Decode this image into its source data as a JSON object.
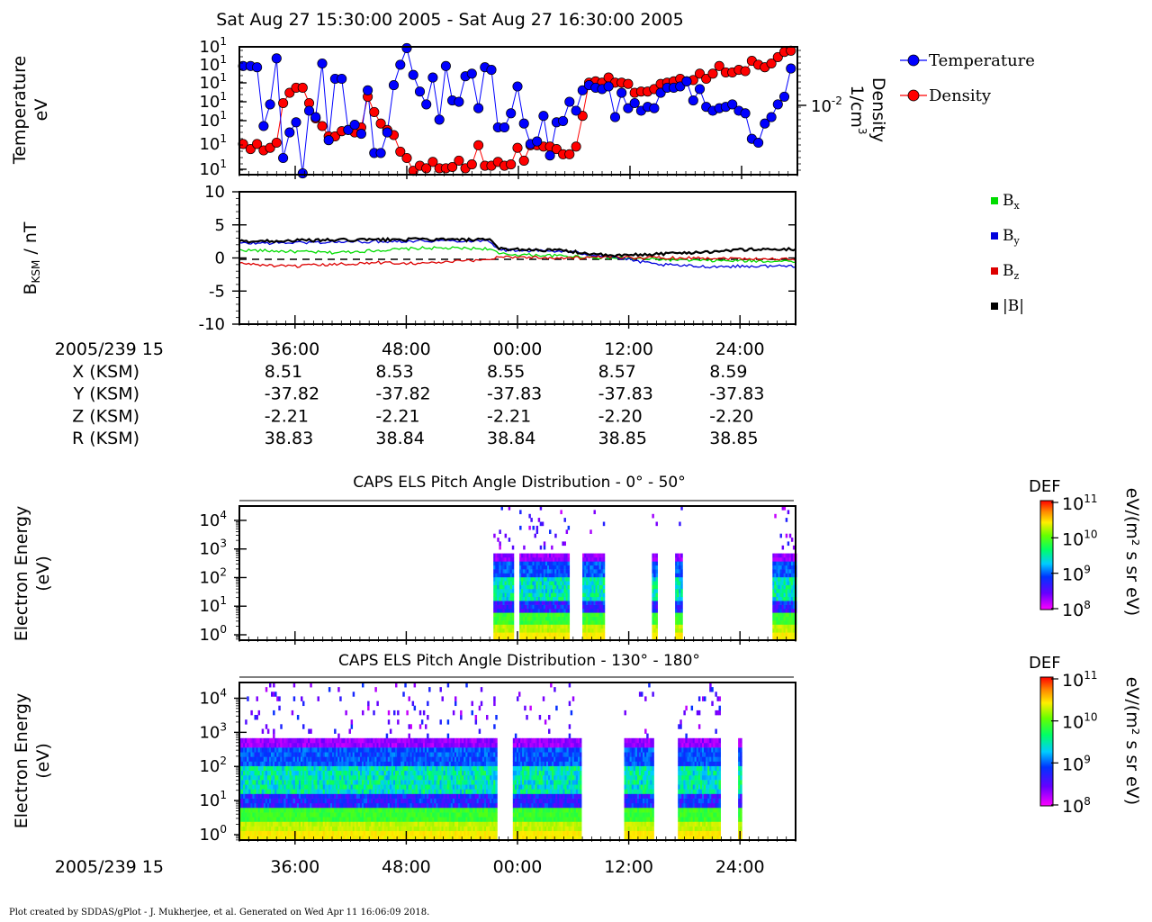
{
  "header": {
    "title": "Sat Aug 27 15:30:00 2005 - Sat Aug 27 16:30:00 2005"
  },
  "footer": {
    "credit": "Plot created by SDDAS/gPlot - J. Mukherjee, et al.  Generated on Wed Apr 11 16:06:09 2018."
  },
  "chart_data": [
    {
      "type": "scatter",
      "panel": "moments",
      "title": "",
      "ylabel": "Temperature",
      "ylabel_unit": "eV",
      "ylabel2": "Density",
      "ylabel2_unit": "1/cm",
      "ylabel2_unit_exp": "3",
      "y_ticks_left": [
        "10",
        "10",
        "10",
        "10",
        "10",
        "10",
        "10"
      ],
      "y_ticks_left_exp": [
        "1",
        "1",
        "1",
        "1",
        "1",
        "1",
        "1"
      ],
      "y_ticks_right": [
        "10"
      ],
      "y_ticks_right_exp": [
        "-2"
      ],
      "xlim_min": [
        0,
        60
      ],
      "ylim_rel": [
        0,
        1
      ],
      "series": [
        {
          "name": "Temperature",
          "color": "#0000ff",
          "x": [
            0.4,
            1.2,
            1.9,
            2.6,
            3.3,
            4.0,
            4.7,
            5.4,
            6.1,
            6.8,
            7.5,
            8.2,
            8.9,
            9.6,
            10.3,
            11.0,
            11.7,
            12.4,
            13.1,
            13.8,
            14.5,
            15.2,
            15.9,
            16.6,
            17.3,
            18.0,
            18.7,
            19.4,
            20.1,
            20.8,
            21.5,
            22.2,
            22.9,
            23.6,
            24.3,
            25.0,
            25.7,
            26.4,
            27.1,
            27.8,
            28.5,
            29.2,
            29.9,
            30.6,
            31.3,
            32.0,
            32.7,
            33.4,
            34.1,
            34.8,
            35.5,
            36.2,
            36.9,
            37.6,
            38.3,
            39.0,
            39.7,
            40.4,
            41.1,
            41.8,
            42.5,
            43.2,
            43.9,
            44.6,
            45.3,
            46.0,
            46.7,
            47.4,
            48.1,
            48.8,
            49.5,
            50.2,
            50.9,
            51.6,
            52.3,
            53.0,
            53.7,
            54.4,
            55.1,
            55.8,
            56.5,
            57.2,
            57.9,
            58.6,
            59.3
          ],
          "y": [
            0.85,
            0.85,
            0.84,
            0.38,
            0.55,
            0.91,
            0.13,
            0.33,
            0.41,
            0.01,
            0.5,
            0.45,
            0.87,
            0.27,
            0.75,
            0.75,
            0.35,
            0.39,
            0.32,
            0.66,
            0.17,
            0.17,
            0.33,
            0.7,
            0.86,
            0.99,
            0.78,
            0.65,
            0.55,
            0.76,
            0.43,
            0.85,
            0.58,
            0.57,
            0.77,
            0.79,
            0.52,
            0.84,
            0.82,
            0.37,
            0.37,
            0.48,
            0.69,
            0.4,
            0.24,
            0.26,
            0.46,
            0.15,
            0.41,
            0.42,
            0.57,
            0.5,
            0.66,
            0.7,
            0.68,
            0.67,
            0.69,
            0.45,
            0.64,
            0.52,
            0.56,
            0.5,
            0.53,
            0.52,
            0.64,
            0.68,
            0.68,
            0.69,
            0.73,
            0.58,
            0.67,
            0.53,
            0.5,
            0.52,
            0.53,
            0.55,
            0.5,
            0.48,
            0.28,
            0.25,
            0.4,
            0.45,
            0.55,
            0.61,
            0.83
          ]
        },
        {
          "name": "Density",
          "color": "#ff0000",
          "x": [
            0.4,
            1.2,
            1.9,
            2.6,
            3.3,
            4.0,
            4.7,
            5.4,
            6.1,
            6.8,
            7.5,
            8.2,
            8.9,
            9.6,
            10.3,
            11.0,
            11.7,
            12.4,
            13.1,
            13.8,
            14.5,
            15.2,
            15.9,
            16.6,
            17.3,
            18.0,
            18.7,
            19.4,
            20.1,
            20.8,
            21.5,
            22.2,
            22.9,
            23.6,
            24.3,
            25.0,
            25.7,
            26.4,
            27.1,
            27.8,
            28.5,
            29.2,
            29.9,
            30.6,
            31.3,
            32.0,
            32.7,
            33.4,
            34.1,
            34.8,
            35.5,
            36.2,
            36.9,
            37.6,
            38.3,
            39.0,
            39.7,
            40.4,
            41.1,
            41.8,
            42.5,
            43.2,
            43.9,
            44.6,
            45.3,
            46.0,
            46.7,
            47.4,
            48.1,
            48.8,
            49.5,
            50.2,
            50.9,
            51.6,
            52.3,
            53.0,
            53.7,
            54.4,
            55.1,
            55.8,
            56.5,
            57.2,
            57.9,
            58.6,
            59.3
          ],
          "y": [
            0.24,
            0.2,
            0.24,
            0.19,
            0.21,
            0.25,
            0.56,
            0.64,
            0.68,
            0.68,
            0.56,
            0.44,
            0.38,
            0.3,
            0.3,
            0.34,
            0.35,
            0.33,
            0.37,
            0.61,
            0.49,
            0.4,
            0.35,
            0.31,
            0.18,
            0.13,
            0.03,
            0.07,
            0.05,
            0.1,
            0.05,
            0.05,
            0.06,
            0.11,
            0.05,
            0.08,
            0.23,
            0.07,
            0.07,
            0.1,
            0.07,
            0.08,
            0.21,
            0.11,
            0.23,
            0.23,
            0.22,
            0.22,
            0.2,
            0.16,
            0.16,
            0.22,
            0.46,
            0.72,
            0.73,
            0.72,
            0.76,
            0.72,
            0.72,
            0.71,
            0.64,
            0.65,
            0.65,
            0.67,
            0.71,
            0.72,
            0.73,
            0.75,
            0.73,
            0.74,
            0.79,
            0.75,
            0.79,
            0.85,
            0.8,
            0.8,
            0.82,
            0.81,
            0.89,
            0.86,
            0.84,
            0.87,
            0.92,
            0.96,
            0.97
          ]
        }
      ]
    },
    {
      "type": "line",
      "panel": "magnetic-field",
      "title": "",
      "ylabel": "B",
      "ylabel_sub": "KSM",
      "ylabel_unit": "/ nT",
      "ylim": [
        -10,
        10
      ],
      "y_ticks": [
        "10",
        "5",
        "0",
        "-5",
        "-10"
      ],
      "x_tick_labels": [
        "36:00",
        "48:00",
        "00:00",
        "12:00",
        "24:00"
      ],
      "series": [
        {
          "name": "B",
          "sub": "x",
          "color": "#00dd00",
          "x_min": [
            0,
            10,
            20,
            27,
            28,
            35,
            40,
            50,
            60
          ],
          "y": [
            1.2,
            0.8,
            1.5,
            1.4,
            0.6,
            0.3,
            0.0,
            -0.4,
            -0.5
          ]
        },
        {
          "name": "B",
          "sub": "y",
          "color": "#0000dd",
          "x_min": [
            0,
            10,
            20,
            27,
            28,
            35,
            40,
            45,
            50,
            60
          ],
          "y": [
            2.2,
            2.4,
            2.6,
            2.6,
            1.2,
            1.0,
            0.2,
            -1.0,
            -1.3,
            -1.2
          ]
        },
        {
          "name": "B",
          "sub": "z",
          "color": "#dd0000",
          "x_min": [
            0,
            5,
            10,
            15,
            20,
            25,
            27,
            28,
            35,
            40,
            50,
            60
          ],
          "y": [
            -0.8,
            -1.3,
            -1.0,
            -0.7,
            -0.8,
            -0.4,
            -0.2,
            0.2,
            0.0,
            0.1,
            0.0,
            -0.2
          ]
        },
        {
          "name": "|B|",
          "sub": "",
          "color": "#000000",
          "x_min": [
            0,
            10,
            20,
            27,
            28,
            35,
            40,
            45,
            50,
            55,
            60
          ],
          "y": [
            2.5,
            2.7,
            2.8,
            2.7,
            1.4,
            1.1,
            0.3,
            0.6,
            0.9,
            1.3,
            1.3
          ]
        }
      ]
    },
    {
      "type": "heatmap",
      "panel": "els-0-50",
      "title": "CAPS ELS Pitch Angle Distribution - 0° - 50°",
      "ylabel": "Electron Energy",
      "ylabel_unit": "(eV)",
      "y_ticks": [
        "10",
        "10",
        "10",
        "10",
        "10"
      ],
      "y_ticks_exp": [
        "4",
        "3",
        "2",
        "1",
        "0"
      ],
      "colorbar_title": "DEF",
      "colorbar_unit": "eV/(m² s sr eV)",
      "colorbar_ticks": [
        "10",
        "10",
        "10",
        "10"
      ],
      "colorbar_ticks_exp": [
        "11",
        "10",
        "9",
        "8"
      ],
      "data_intervals_min": [
        [
          27.4,
          29.4
        ],
        [
          30.2,
          35.6
        ],
        [
          37.0,
          39.4
        ],
        [
          44.5,
          45.0
        ],
        [
          47.0,
          47.7
        ],
        [
          57.5,
          60.0
        ]
      ]
    },
    {
      "type": "heatmap",
      "panel": "els-130-180",
      "title": "CAPS ELS Pitch Angle Distribution - 130° - 180°",
      "ylabel": "Electron Energy",
      "ylabel_unit": "(eV)",
      "y_ticks": [
        "10",
        "10",
        "10",
        "10",
        "10"
      ],
      "y_ticks_exp": [
        "4",
        "3",
        "2",
        "1",
        "0"
      ],
      "colorbar_title": "DEF",
      "colorbar_unit": "eV/(m² s sr eV)",
      "colorbar_ticks": [
        "10",
        "10",
        "10",
        "10"
      ],
      "colorbar_ticks_exp": [
        "11",
        "10",
        "9",
        "8"
      ],
      "x_tick_labels": [
        "36:00",
        "48:00",
        "00:00",
        "12:00",
        "24:00"
      ],
      "data_intervals_min": [
        [
          0,
          27.6
        ],
        [
          29.5,
          36.8
        ],
        [
          41.5,
          44.6
        ],
        [
          47.3,
          51.8
        ],
        [
          53.8,
          54.2
        ]
      ]
    }
  ],
  "ephemeris": {
    "epoch_label": "2005/239 15",
    "ticks": [
      "36:00",
      "48:00",
      "00:00",
      "12:00",
      "24:00"
    ],
    "rows": [
      {
        "label": "X (KSM)",
        "values": [
          "8.51",
          "8.53",
          "8.55",
          "8.57",
          "8.59"
        ]
      },
      {
        "label": "Y (KSM)",
        "values": [
          "-37.82",
          "-37.82",
          "-37.83",
          "-37.83",
          "-37.83"
        ]
      },
      {
        "label": "Z (KSM)",
        "values": [
          "-2.21",
          "-2.21",
          "-2.21",
          "-2.20",
          "-2.20"
        ]
      },
      {
        "label": "R (KSM)",
        "values": [
          "38.83",
          "38.84",
          "38.84",
          "38.85",
          "38.85"
        ]
      }
    ]
  },
  "bottom_axis": {
    "epoch_label": "2005/239 15"
  }
}
